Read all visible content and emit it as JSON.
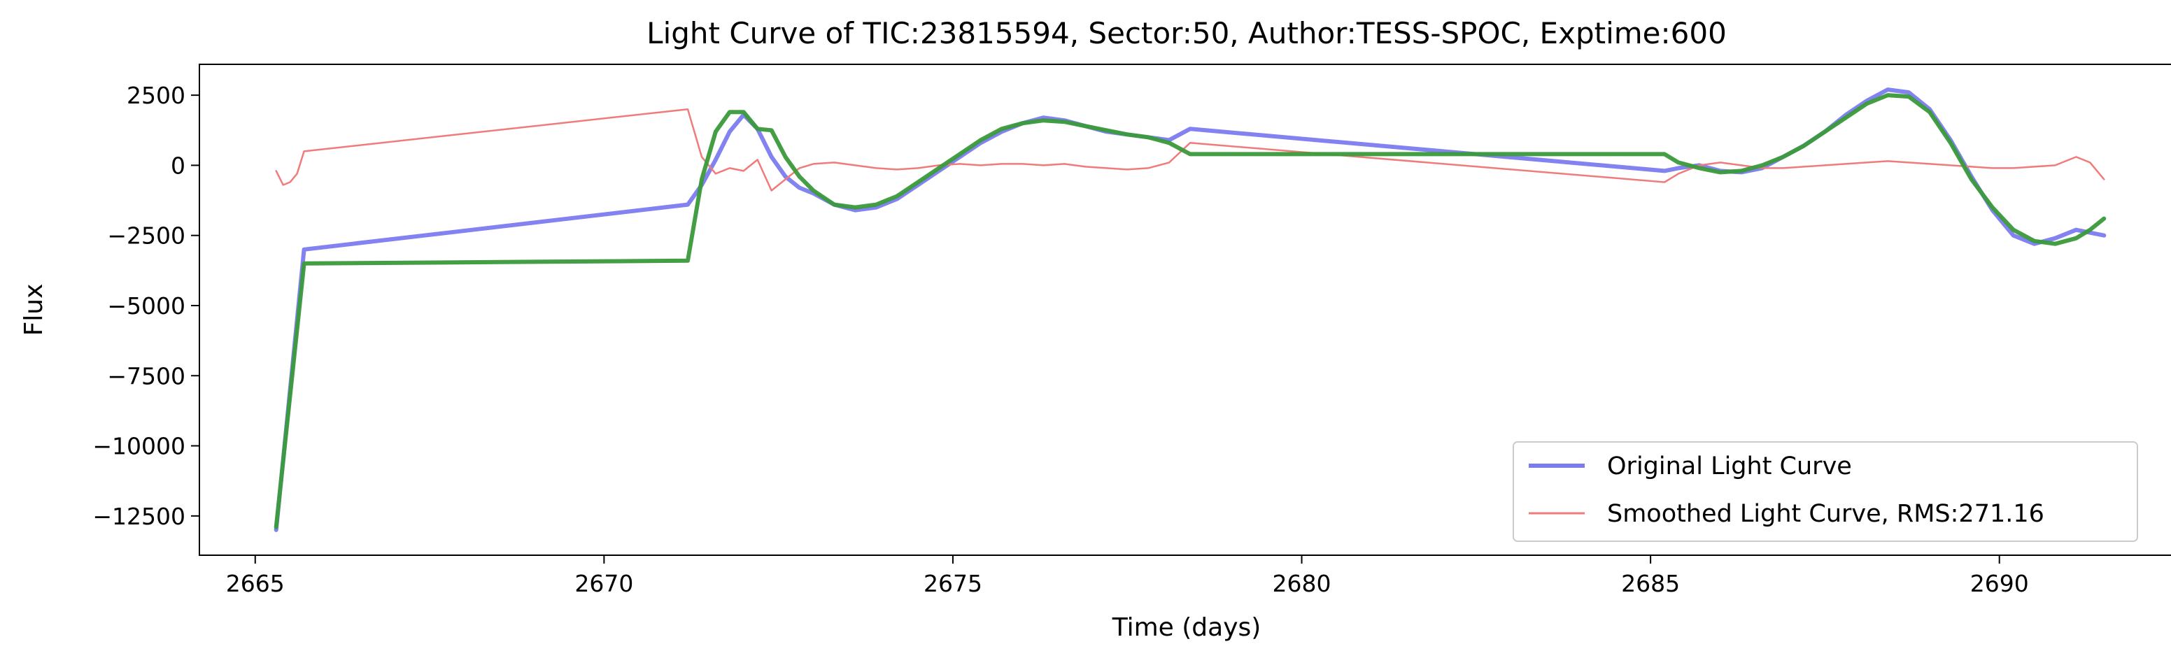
{
  "chart_data": {
    "type": "line",
    "title": "Light Curve of TIC:23815594, Sector:50, Author:TESS-SPOC, Exptime:600",
    "xlabel": "Time (days)",
    "ylabel": "Flux",
    "xlim": [
      2664.2,
      2692.5
    ],
    "ylim": [
      -13900,
      3600
    ],
    "x_ticks": [
      {
        "value": 2665,
        "label": "2665"
      },
      {
        "value": 2670,
        "label": "2670"
      },
      {
        "value": 2675,
        "label": "2675"
      },
      {
        "value": 2680,
        "label": "2680"
      },
      {
        "value": 2685,
        "label": "2685"
      },
      {
        "value": 2690,
        "label": "2690"
      }
    ],
    "y_ticks": [
      {
        "value": 2500,
        "label": "2500"
      },
      {
        "value": 0,
        "label": "0"
      },
      {
        "value": -2500,
        "label": "−2500"
      },
      {
        "value": -5000,
        "label": "−5000"
      },
      {
        "value": -7500,
        "label": "−7500"
      },
      {
        "value": -10000,
        "label": "−10000"
      },
      {
        "value": -12500,
        "label": "−12500"
      }
    ],
    "grid": false,
    "legend_position": "lower-right",
    "series": [
      {
        "name": "Original Light Curve",
        "color": "#7b7bf0",
        "x": [
          2665.3,
          2665.7,
          2671.2,
          2671.4,
          2671.6,
          2671.8,
          2672.0,
          2672.2,
          2672.4,
          2672.6,
          2672.8,
          2673.0,
          2673.3,
          2673.6,
          2673.9,
          2674.2,
          2674.5,
          2674.8,
          2675.1,
          2675.4,
          2675.7,
          2676.0,
          2676.3,
          2676.6,
          2676.9,
          2677.2,
          2677.5,
          2677.8,
          2678.1,
          2678.4,
          2685.2,
          2685.4,
          2685.7,
          2686.0,
          2686.3,
          2686.6,
          2686.9,
          2687.2,
          2687.5,
          2687.8,
          2688.1,
          2688.4,
          2688.7,
          2689.0,
          2689.3,
          2689.6,
          2689.9,
          2690.2,
          2690.5,
          2690.8,
          2691.1,
          2691.3,
          2691.5
        ],
        "values": [
          -13000,
          -3000,
          -1400,
          -700,
          200,
          1200,
          1800,
          1300,
          300,
          -400,
          -800,
          -1000,
          -1400,
          -1600,
          -1500,
          -1200,
          -700,
          -200,
          300,
          800,
          1200,
          1500,
          1700,
          1600,
          1400,
          1200,
          1100,
          1000,
          900,
          1300,
          -200,
          -100,
          0,
          -200,
          -250,
          -100,
          300,
          700,
          1200,
          1800,
          2300,
          2700,
          2600,
          2000,
          900,
          -400,
          -1600,
          -2500,
          -2800,
          -2600,
          -2300,
          -2400,
          -2500
        ]
      },
      {
        "name": "Smoothed Light Curve, RMS:271.16",
        "color": "#f07b7b",
        "x": [
          2665.3,
          2665.4,
          2665.5,
          2665.6,
          2665.7,
          2671.2,
          2671.4,
          2671.6,
          2671.8,
          2672.0,
          2672.2,
          2672.4,
          2672.6,
          2672.8,
          2673.0,
          2673.3,
          2673.6,
          2673.9,
          2674.2,
          2674.5,
          2674.8,
          2675.1,
          2675.4,
          2675.7,
          2676.0,
          2676.3,
          2676.6,
          2676.9,
          2677.2,
          2677.5,
          2677.8,
          2678.1,
          2678.4,
          2685.2,
          2685.4,
          2685.7,
          2686.0,
          2686.3,
          2686.6,
          2686.9,
          2687.2,
          2687.5,
          2687.8,
          2688.1,
          2688.4,
          2688.7,
          2689.0,
          2689.3,
          2689.6,
          2689.9,
          2690.2,
          2690.5,
          2690.8,
          2691.1,
          2691.3,
          2691.5
        ],
        "values": [
          -200,
          -700,
          -600,
          -300,
          500,
          2000,
          300,
          -300,
          -100,
          -200,
          200,
          -900,
          -500,
          -100,
          50,
          100,
          0,
          -100,
          -150,
          -100,
          0,
          50,
          0,
          50,
          50,
          0,
          50,
          -50,
          -100,
          -150,
          -100,
          100,
          800,
          -600,
          -300,
          0,
          100,
          0,
          -100,
          -100,
          -50,
          0,
          50,
          100,
          150,
          100,
          50,
          0,
          -50,
          -100,
          -100,
          -50,
          0,
          300,
          100,
          -500
        ]
      },
      {
        "name": "",
        "color": "#3a9a3a",
        "x": [
          2665.3,
          2665.7,
          2671.2,
          2671.4,
          2671.6,
          2671.8,
          2672.0,
          2672.2,
          2672.4,
          2672.6,
          2672.8,
          2673.0,
          2673.3,
          2673.6,
          2673.9,
          2674.2,
          2674.5,
          2674.8,
          2675.1,
          2675.4,
          2675.7,
          2676.0,
          2676.3,
          2676.6,
          2676.9,
          2677.2,
          2677.5,
          2677.8,
          2678.1,
          2678.4,
          2685.2,
          2685.4,
          2685.7,
          2686.0,
          2686.3,
          2686.6,
          2686.9,
          2687.2,
          2687.5,
          2687.8,
          2688.1,
          2688.4,
          2688.7,
          2689.0,
          2689.3,
          2689.6,
          2689.9,
          2690.2,
          2690.5,
          2690.8,
          2691.1,
          2691.3,
          2691.5
        ],
        "values": [
          -12900,
          -3500,
          -3400,
          -500,
          1200,
          1900,
          1900,
          1300,
          1250,
          300,
          -400,
          -900,
          -1400,
          -1500,
          -1400,
          -1100,
          -600,
          -100,
          400,
          900,
          1300,
          1500,
          1600,
          1550,
          1400,
          1250,
          1100,
          1000,
          800,
          400,
          400,
          100,
          -100,
          -250,
          -200,
          0,
          300,
          700,
          1200,
          1700,
          2200,
          2500,
          2450,
          1900,
          800,
          -500,
          -1500,
          -2300,
          -2700,
          -2800,
          -2600,
          -2300,
          -1900
        ]
      }
    ]
  }
}
